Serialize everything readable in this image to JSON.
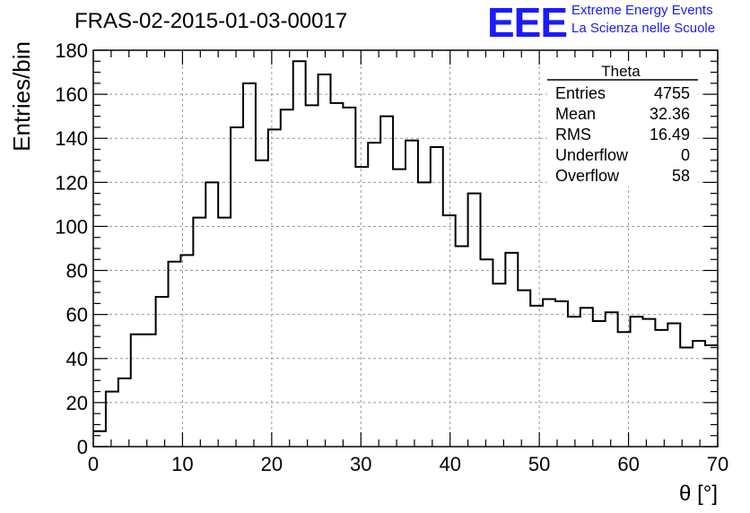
{
  "header": {
    "title": "FRAS-02-2015-01-03-00017",
    "logo": "EEE",
    "org_line1": "Extreme Energy Events",
    "org_line2": "La Scienza nelle Scuole"
  },
  "stats": {
    "name": "Theta",
    "rows": [
      {
        "label": "Entries",
        "value": "4755"
      },
      {
        "label": "Mean",
        "value": "32.36"
      },
      {
        "label": "RMS",
        "value": "16.49"
      },
      {
        "label": "Underflow",
        "value": "0"
      },
      {
        "label": "Overflow",
        "value": "58"
      }
    ]
  },
  "chart_data": {
    "type": "histogram",
    "xlabel": "θ [°]",
    "ylabel": "Entries/bin",
    "xlim": [
      0,
      70
    ],
    "ylim": [
      0,
      180
    ],
    "grid": true,
    "x_ticks": [
      0,
      10,
      20,
      30,
      40,
      50,
      60,
      70
    ],
    "y_ticks": [
      0,
      20,
      40,
      60,
      80,
      100,
      120,
      140,
      160,
      180
    ],
    "bin_width": 1.4,
    "bin_edges_start": 0,
    "values": [
      7,
      25,
      31,
      51,
      51,
      68,
      84,
      87,
      104,
      120,
      104,
      145,
      165,
      130,
      144,
      153,
      175,
      155,
      169,
      156,
      154,
      127,
      138,
      150,
      126,
      139,
      120,
      136,
      105,
      91,
      115,
      85,
      74,
      88,
      71,
      64,
      67,
      66,
      59,
      63,
      57,
      61,
      52,
      59,
      58,
      53,
      56,
      45,
      48,
      46
    ]
  }
}
